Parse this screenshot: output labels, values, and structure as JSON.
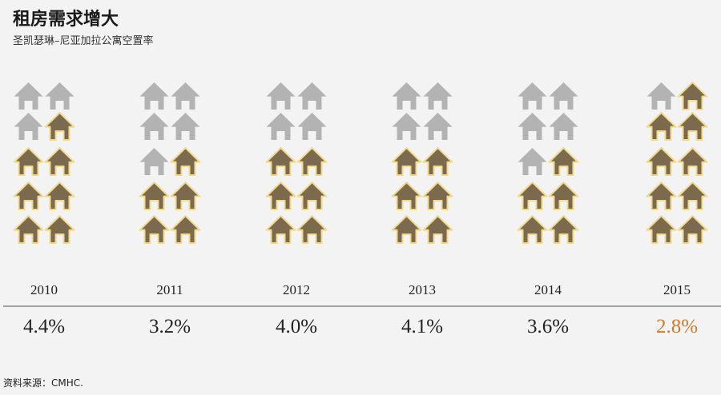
{
  "chart_data": {
    "type": "pictogram",
    "title": "租房需求增大",
    "subtitle": "圣凯瑟琳–尼亚加拉公寓空置率",
    "categories": [
      "2010",
      "2011",
      "2012",
      "2013",
      "2014",
      "2015"
    ],
    "values": [
      4.4,
      3.2,
      4.0,
      4.1,
      3.6,
      2.8
    ],
    "value_labels": [
      "4.4%",
      "3.2%",
      "4.0%",
      "4.1%",
      "3.6%",
      "2.8%"
    ],
    "icons_total": 10,
    "icons_filled": [
      7,
      5,
      6,
      6,
      5,
      9
    ],
    "highlight_index": 5,
    "colors": {
      "filled_house": "#7c6a4f",
      "filled_outline": "#f3d98c",
      "empty_house": "#b3b3b3",
      "highlight_value": "#d07a2c",
      "axis_line": "#888888"
    },
    "icon": "house-icon"
  },
  "source": "资料来源：CMHC."
}
